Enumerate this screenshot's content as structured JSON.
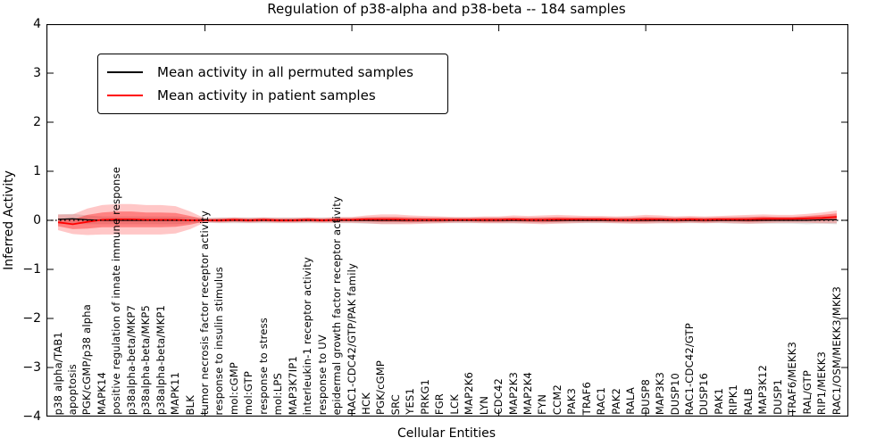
{
  "title": "Regulation of p38-alpha and p38-beta -- 184 samples",
  "axes": {
    "ylabel": "Inferred Activity",
    "xlabel": "Cellular Entities",
    "yticks": [
      "4",
      "3",
      "2",
      "1",
      "0",
      "−1",
      "−2",
      "−3",
      "−4"
    ]
  },
  "legend": {
    "items": [
      {
        "label": "Mean activity in all permuted samples",
        "color": "#000000"
      },
      {
        "label": "Mean activity in patient samples",
        "color": "#ff0000"
      }
    ]
  },
  "colors": {
    "patient_line": "#ff0000",
    "permuted_line": "#000000",
    "patient_band": "#ff0000",
    "permuted_band": "#aaaaaa",
    "zero_line": "#000000",
    "frame": "#000000"
  },
  "chart_data": {
    "type": "line",
    "title": "Regulation of p38-alpha and p38-beta -- 184 samples",
    "xlabel": "Cellular Entities",
    "ylabel": "Inferred Activity",
    "ylim": [
      -4,
      4
    ],
    "yticks": [
      4,
      3,
      2,
      1,
      0,
      -1,
      -2,
      -3,
      -4
    ],
    "grid": false,
    "zero_line_style": "dotted",
    "legend_position": "upper left",
    "top_xtick_indices": [
      10,
      20,
      30,
      40,
      50
    ],
    "categories": [
      "p38 alpha/TAB1",
      "apoptosis",
      "PGK/cGMP/p38 alpha",
      "MAPK14",
      "positive regulation of innate immune response",
      "p38alpha-beta/MKP7",
      "p38alpha-beta/MKP5",
      "p38alpha-beta/MKP1",
      "MAPK11",
      "BLK",
      "tumor necrosis factor receptor activity",
      "response to insulin stimulus",
      "mol:cGMP",
      "mol:GTP",
      "response to stress",
      "mol:LPS",
      "MAP3K7IP1",
      "interleukin-1 receptor activity",
      "response to UV",
      "epidermal growth factor receptor activity",
      "RAC1-CDC42/GTP/PAK family",
      "HCK",
      "PGK/cGMP",
      "SRC",
      "YES1",
      "PRKG1",
      "FGR",
      "LCK",
      "MAP2K6",
      "LYN",
      "CDC42",
      "MAP2K3",
      "MAP2K4",
      "FYN",
      "CCM2",
      "PAK3",
      "TRAF6",
      "RAC1",
      "PAK2",
      "RALA",
      "DUSP8",
      "MAP3K3",
      "DUSP10",
      "RAC1-CDC42/GTP",
      "DUSP16",
      "PAK1",
      "RIPK1",
      "RALB",
      "MAP3K12",
      "DUSP1",
      "TRAF6/MEKK3",
      "RAL/GTP",
      "RIP1/MEKK3",
      "RAC1/OSM/MEKK3/MKK3"
    ],
    "series": [
      {
        "name": "Mean activity in all permuted samples",
        "kind": "line",
        "color": "#000000",
        "width": 1.3,
        "values": [
          0.02,
          0.03,
          0.01,
          0,
          0,
          0,
          0,
          0,
          0,
          0,
          0,
          0,
          0,
          0,
          0,
          0,
          0,
          0,
          0,
          0,
          0,
          0,
          0,
          0,
          0,
          0,
          0,
          0,
          0,
          0,
          0,
          0,
          0,
          0,
          0,
          0,
          0,
          0,
          0,
          0,
          0,
          0,
          0,
          0,
          0,
          0,
          0,
          0,
          0,
          0,
          0,
          0,
          0.01,
          0.01
        ]
      },
      {
        "name": "Mean activity in patient samples",
        "kind": "line",
        "color": "#ff0000",
        "width": 1.8,
        "values": [
          -0.04,
          -0.08,
          -0.03,
          0.01,
          0.02,
          0.02,
          0.01,
          0.01,
          0.01,
          0.0,
          0.0,
          0.0,
          0.01,
          0.0,
          0.01,
          0.0,
          0.0,
          0.01,
          0.0,
          0.01,
          0.01,
          0.02,
          0.02,
          0.02,
          0.01,
          0.01,
          0.01,
          0.01,
          0.01,
          0.01,
          0.01,
          0.02,
          0.01,
          0.01,
          0.02,
          0.02,
          0.02,
          0.02,
          0.01,
          0.01,
          0.02,
          0.02,
          0.01,
          0.02,
          0.01,
          0.02,
          0.02,
          0.02,
          0.03,
          0.03,
          0.03,
          0.04,
          0.05,
          0.07
        ]
      },
      {
        "name": "Permuted samples spread (half-width)",
        "kind": "band",
        "center": 0,
        "color": "#aaaaaa",
        "opacity": 0.35,
        "values": [
          0.1,
          0.1,
          0.09,
          0.08,
          0.08,
          0.08,
          0.08,
          0.08,
          0.08,
          0.06,
          0.05,
          0.06,
          0.06,
          0.06,
          0.06,
          0.06,
          0.06,
          0.06,
          0.06,
          0.06,
          0.06,
          0.07,
          0.07,
          0.07,
          0.06,
          0.06,
          0.06,
          0.06,
          0.06,
          0.06,
          0.06,
          0.06,
          0.06,
          0.06,
          0.06,
          0.06,
          0.06,
          0.06,
          0.06,
          0.06,
          0.06,
          0.06,
          0.06,
          0.06,
          0.06,
          0.06,
          0.07,
          0.07,
          0.07,
          0.07,
          0.07,
          0.08,
          0.08,
          0.09
        ]
      },
      {
        "name": "Patient samples spread outer (half-width)",
        "kind": "band",
        "center": 1,
        "color": "#ff0000",
        "opacity": 0.22,
        "values": [
          0.16,
          0.2,
          0.27,
          0.3,
          0.31,
          0.31,
          0.3,
          0.3,
          0.28,
          0.18,
          0.04,
          0.05,
          0.05,
          0.05,
          0.05,
          0.05,
          0.05,
          0.05,
          0.05,
          0.06,
          0.06,
          0.08,
          0.1,
          0.1,
          0.09,
          0.08,
          0.07,
          0.06,
          0.06,
          0.07,
          0.07,
          0.08,
          0.08,
          0.09,
          0.09,
          0.08,
          0.07,
          0.07,
          0.07,
          0.08,
          0.09,
          0.08,
          0.07,
          0.07,
          0.07,
          0.07,
          0.08,
          0.09,
          0.09,
          0.08,
          0.08,
          0.09,
          0.11,
          0.13
        ]
      },
      {
        "name": "Patient samples spread inner (half-width)",
        "kind": "band",
        "center": 1,
        "color": "#ff0000",
        "opacity": 0.35,
        "values": [
          0.08,
          0.1,
          0.14,
          0.15,
          0.16,
          0.16,
          0.15,
          0.15,
          0.14,
          0.09,
          0.02,
          0.03,
          0.03,
          0.03,
          0.03,
          0.03,
          0.03,
          0.03,
          0.03,
          0.03,
          0.03,
          0.04,
          0.05,
          0.05,
          0.05,
          0.04,
          0.04,
          0.03,
          0.03,
          0.04,
          0.04,
          0.04,
          0.04,
          0.05,
          0.05,
          0.04,
          0.04,
          0.04,
          0.04,
          0.04,
          0.05,
          0.04,
          0.04,
          0.04,
          0.04,
          0.04,
          0.04,
          0.05,
          0.05,
          0.04,
          0.04,
          0.05,
          0.06,
          0.07
        ]
      }
    ]
  }
}
